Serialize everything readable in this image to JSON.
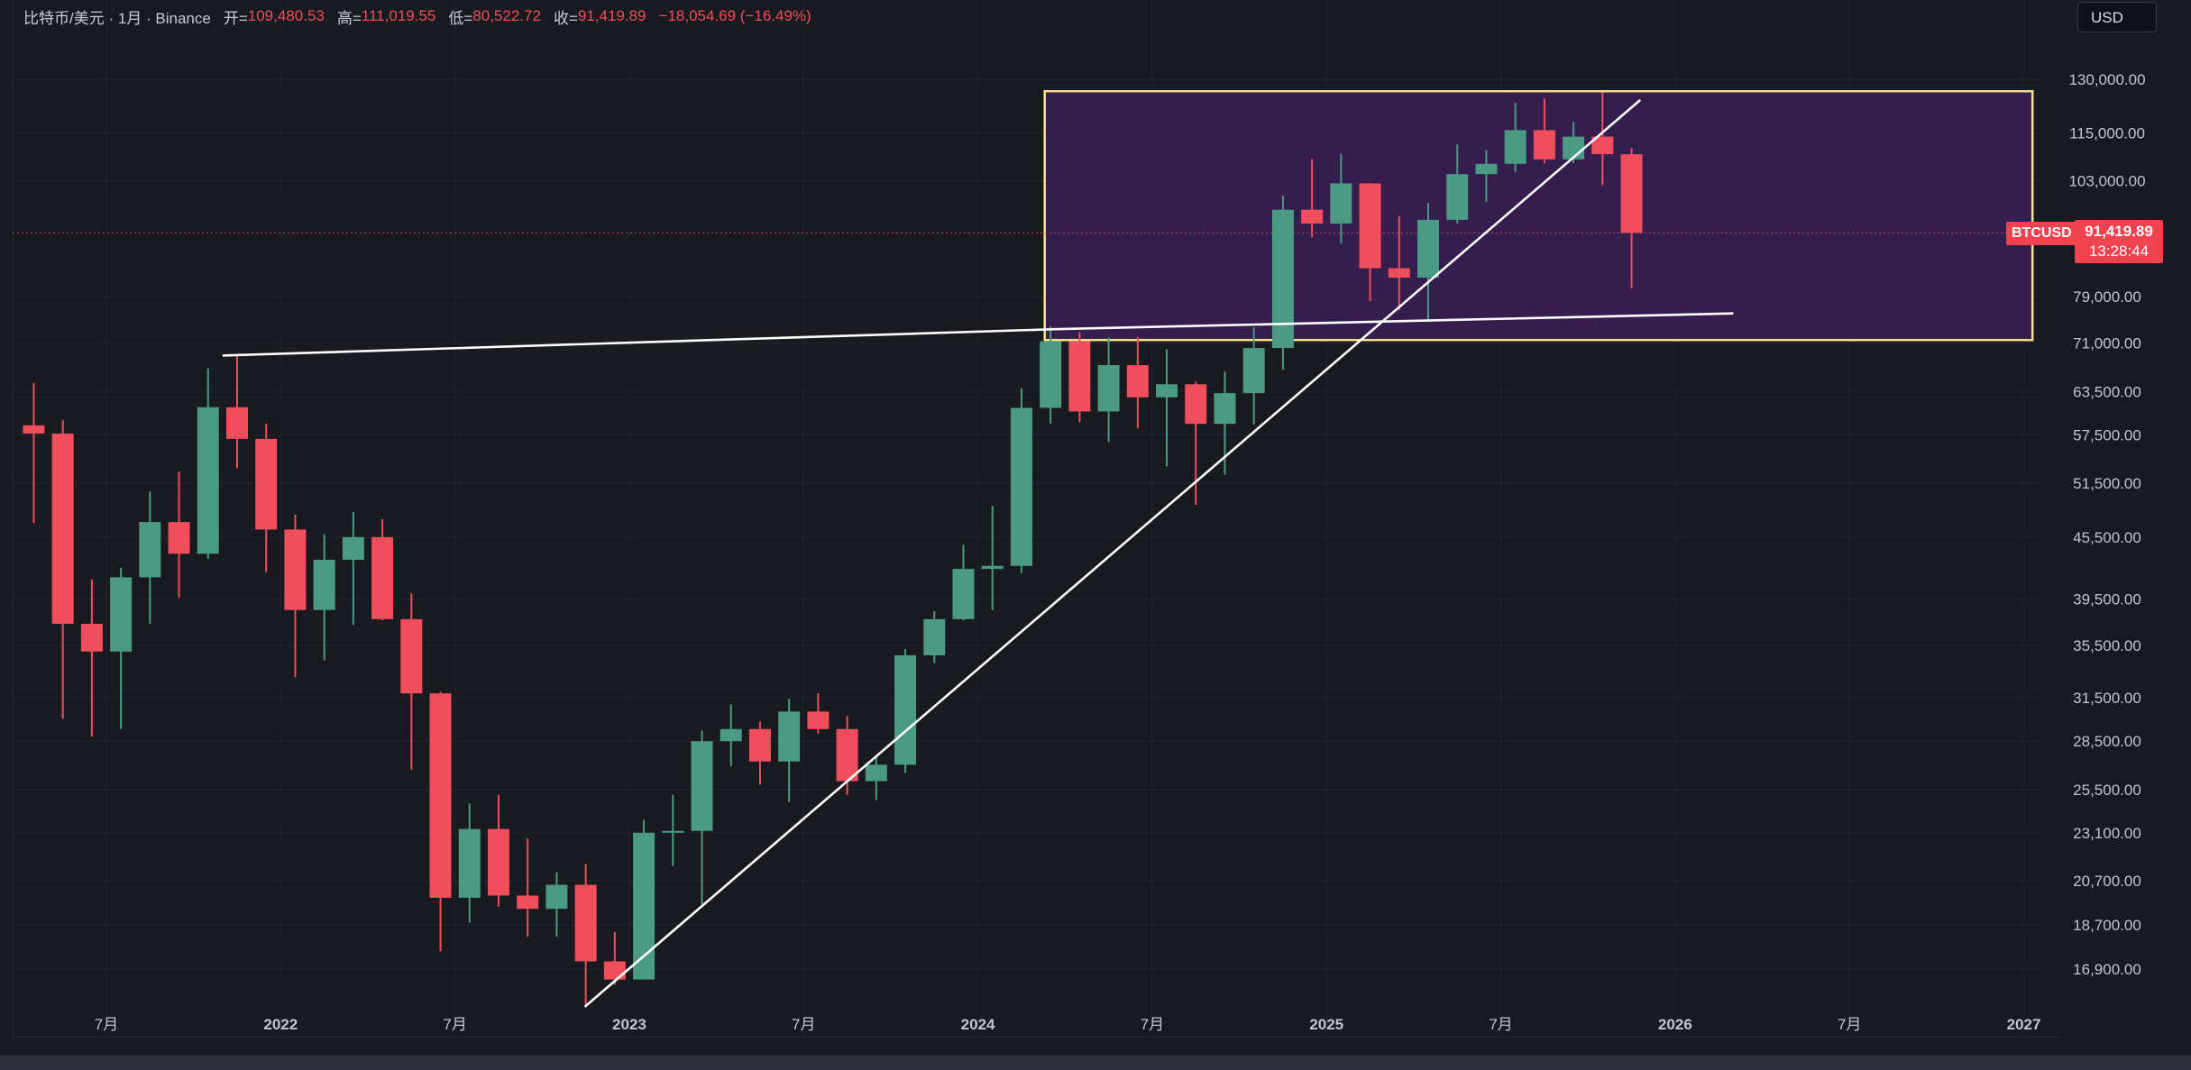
{
  "header": {
    "symbol": "比特币/美元 · 1月 · Binance",
    "open_label": "开=",
    "open": "109,480.53",
    "high_label": "高=",
    "high": "111,019.55",
    "low_label": "低=",
    "low": "80,522.72",
    "close_label": "收=",
    "close": "91,419.89",
    "change": "−18,054.69 (−16.49%)"
  },
  "currency_button": "USD",
  "price_tag": {
    "symbol": "BTCUSD",
    "price": "91,419.89",
    "countdown": "13:28:44"
  },
  "colors": {
    "background": "#181a20",
    "up": "#4a9a84",
    "down": "#ef4e5c",
    "box_border": "#f4e487",
    "box_fill": "#3b1f57",
    "lines": "#ffffff",
    "text": "#c9ccd3"
  },
  "chart_data": {
    "type": "candlestick",
    "y_scale": "log",
    "ylim": [
      15500,
      150000
    ],
    "x_range": [
      "2021-03",
      "2027-02"
    ],
    "y_ticks": [
      {
        "v": 130000,
        "label": "130,000.00"
      },
      {
        "v": 115000,
        "label": "115,000.00"
      },
      {
        "v": 103000,
        "label": "103,000.00"
      },
      {
        "v": 79000,
        "label": "79,000.00"
      },
      {
        "v": 71000,
        "label": "71,000.00"
      },
      {
        "v": 63500,
        "label": "63,500.00"
      },
      {
        "v": 57500,
        "label": "57,500.00"
      },
      {
        "v": 51500,
        "label": "51,500.00"
      },
      {
        "v": 45500,
        "label": "45,500.00"
      },
      {
        "v": 39500,
        "label": "39,500.00"
      },
      {
        "v": 35500,
        "label": "35,500.00"
      },
      {
        "v": 31500,
        "label": "31,500.00"
      },
      {
        "v": 28500,
        "label": "28,500.00"
      },
      {
        "v": 25500,
        "label": "25,500.00"
      },
      {
        "v": 23100,
        "label": "23,100.00"
      },
      {
        "v": 20700,
        "label": "20,700.00"
      },
      {
        "v": 18700,
        "label": "18,700.00"
      },
      {
        "v": 16900,
        "label": "16,900.00"
      }
    ],
    "x_ticks": [
      {
        "date": "2021-07",
        "label": "7月",
        "bold": false
      },
      {
        "date": "2022-01",
        "label": "2022",
        "bold": true
      },
      {
        "date": "2022-07",
        "label": "7月",
        "bold": false
      },
      {
        "date": "2023-01",
        "label": "2023",
        "bold": true
      },
      {
        "date": "2023-07",
        "label": "7月",
        "bold": false
      },
      {
        "date": "2024-01",
        "label": "2024",
        "bold": true
      },
      {
        "date": "2024-07",
        "label": "7月",
        "bold": false
      },
      {
        "date": "2025-01",
        "label": "2025",
        "bold": true
      },
      {
        "date": "2025-07",
        "label": "7月",
        "bold": false
      },
      {
        "date": "2026-01",
        "label": "2026",
        "bold": true
      },
      {
        "date": "2026-07",
        "label": "7月",
        "bold": false
      },
      {
        "date": "2027-01",
        "label": "2027",
        "bold": true
      }
    ],
    "candles": [
      {
        "date": "2021-04",
        "o": 58800,
        "h": 64800,
        "l": 47000,
        "c": 57700
      },
      {
        "date": "2021-05",
        "o": 57700,
        "h": 59500,
        "l": 30000,
        "c": 37300
      },
      {
        "date": "2021-06",
        "o": 37300,
        "h": 41300,
        "l": 28800,
        "c": 35000
      },
      {
        "date": "2021-07",
        "o": 35000,
        "h": 42400,
        "l": 29300,
        "c": 41500
      },
      {
        "date": "2021-08",
        "o": 41500,
        "h": 50500,
        "l": 37300,
        "c": 47100
      },
      {
        "date": "2021-09",
        "o": 47100,
        "h": 52900,
        "l": 39600,
        "c": 43800
      },
      {
        "date": "2021-10",
        "o": 43800,
        "h": 67000,
        "l": 43300,
        "c": 61300
      },
      {
        "date": "2021-11",
        "o": 61300,
        "h": 69000,
        "l": 53300,
        "c": 57000
      },
      {
        "date": "2021-12",
        "o": 57000,
        "h": 59000,
        "l": 42000,
        "c": 46300
      },
      {
        "date": "2022-01",
        "o": 46300,
        "h": 47900,
        "l": 33000,
        "c": 38500
      },
      {
        "date": "2022-02",
        "o": 38500,
        "h": 45800,
        "l": 34300,
        "c": 43200
      },
      {
        "date": "2022-03",
        "o": 43200,
        "h": 48200,
        "l": 37200,
        "c": 45500
      },
      {
        "date": "2022-04",
        "o": 45500,
        "h": 47400,
        "l": 37600,
        "c": 37700
      },
      {
        "date": "2022-05",
        "o": 37700,
        "h": 40000,
        "l": 26700,
        "c": 31800
      },
      {
        "date": "2022-06",
        "o": 31800,
        "h": 31900,
        "l": 17600,
        "c": 19900
      },
      {
        "date": "2022-07",
        "o": 19900,
        "h": 24700,
        "l": 18800,
        "c": 23300
      },
      {
        "date": "2022-08",
        "o": 23300,
        "h": 25200,
        "l": 19500,
        "c": 20000
      },
      {
        "date": "2022-09",
        "o": 20000,
        "h": 22800,
        "l": 18200,
        "c": 19400
      },
      {
        "date": "2022-10",
        "o": 19400,
        "h": 21100,
        "l": 18200,
        "c": 20500
      },
      {
        "date": "2022-11",
        "o": 20500,
        "h": 21500,
        "l": 15500,
        "c": 17200
      },
      {
        "date": "2022-12",
        "o": 17200,
        "h": 18400,
        "l": 16300,
        "c": 16500
      },
      {
        "date": "2023-01",
        "o": 16500,
        "h": 23800,
        "l": 16500,
        "c": 23100
      },
      {
        "date": "2023-02",
        "o": 23100,
        "h": 25200,
        "l": 21400,
        "c": 23200
      },
      {
        "date": "2023-03",
        "o": 23200,
        "h": 29200,
        "l": 19600,
        "c": 28500
      },
      {
        "date": "2023-04",
        "o": 28500,
        "h": 31000,
        "l": 26900,
        "c": 29300
      },
      {
        "date": "2023-05",
        "o": 29300,
        "h": 29800,
        "l": 25800,
        "c": 27200
      },
      {
        "date": "2023-06",
        "o": 27200,
        "h": 31400,
        "l": 24800,
        "c": 30500
      },
      {
        "date": "2023-07",
        "o": 30500,
        "h": 31800,
        "l": 29000,
        "c": 29300
      },
      {
        "date": "2023-08",
        "o": 29300,
        "h": 30200,
        "l": 25200,
        "c": 26000
      },
      {
        "date": "2023-09",
        "o": 26000,
        "h": 27500,
        "l": 24900,
        "c": 27000
      },
      {
        "date": "2023-10",
        "o": 27000,
        "h": 35200,
        "l": 26500,
        "c": 34700
      },
      {
        "date": "2023-11",
        "o": 34700,
        "h": 38400,
        "l": 34100,
        "c": 37700
      },
      {
        "date": "2023-12",
        "o": 37700,
        "h": 44700,
        "l": 37600,
        "c": 42300
      },
      {
        "date": "2024-01",
        "o": 42300,
        "h": 48900,
        "l": 38500,
        "c": 42600
      },
      {
        "date": "2024-02",
        "o": 42600,
        "h": 64000,
        "l": 41900,
        "c": 61200
      },
      {
        "date": "2024-03",
        "o": 61200,
        "h": 73800,
        "l": 59000,
        "c": 71300
      },
      {
        "date": "2024-04",
        "o": 71300,
        "h": 72800,
        "l": 59200,
        "c": 60700
      },
      {
        "date": "2024-05",
        "o": 60700,
        "h": 71900,
        "l": 56600,
        "c": 67500
      },
      {
        "date": "2024-06",
        "o": 67500,
        "h": 72000,
        "l": 58400,
        "c": 62700
      },
      {
        "date": "2024-07",
        "o": 62700,
        "h": 70000,
        "l": 53500,
        "c": 64600
      },
      {
        "date": "2024-08",
        "o": 64600,
        "h": 65000,
        "l": 49000,
        "c": 59000
      },
      {
        "date": "2024-09",
        "o": 59000,
        "h": 66500,
        "l": 52500,
        "c": 63300
      },
      {
        "date": "2024-10",
        "o": 63300,
        "h": 73600,
        "l": 58900,
        "c": 70200
      },
      {
        "date": "2024-11",
        "o": 70200,
        "h": 99600,
        "l": 66800,
        "c": 96400
      },
      {
        "date": "2024-12",
        "o": 96400,
        "h": 108300,
        "l": 90500,
        "c": 93400
      },
      {
        "date": "2025-01",
        "o": 93400,
        "h": 109600,
        "l": 89200,
        "c": 102400
      },
      {
        "date": "2025-02",
        "o": 102400,
        "h": 102500,
        "l": 78200,
        "c": 84300
      },
      {
        "date": "2025-03",
        "o": 84300,
        "h": 95000,
        "l": 76600,
        "c": 82500
      },
      {
        "date": "2025-04",
        "o": 82500,
        "h": 97900,
        "l": 74500,
        "c": 94200
      },
      {
        "date": "2025-05",
        "o": 94200,
        "h": 111900,
        "l": 93400,
        "c": 104600
      },
      {
        "date": "2025-06",
        "o": 104600,
        "h": 110500,
        "l": 98200,
        "c": 107100
      },
      {
        "date": "2025-07",
        "o": 107100,
        "h": 123200,
        "l": 105100,
        "c": 115700
      },
      {
        "date": "2025-08",
        "o": 115700,
        "h": 124400,
        "l": 107300,
        "c": 108200
      },
      {
        "date": "2025-09",
        "o": 108200,
        "h": 117900,
        "l": 107300,
        "c": 114000
      },
      {
        "date": "2025-10",
        "o": 114000,
        "h": 126200,
        "l": 102000,
        "c": 109500
      },
      {
        "date": "2025-11",
        "o": 109480.53,
        "h": 111019.55,
        "l": 80522.72,
        "c": 91419.89
      }
    ],
    "box": {
      "x1": "2024-03-10",
      "x2": "2027-01-10",
      "y1": 71500,
      "y2": 126500
    },
    "trendlines": [
      {
        "x1": "2021-11",
        "y1": 69000,
        "x2": "2024-03-20",
        "y2": 73300
      },
      {
        "x1": "2024-03-20",
        "y1": 73300,
        "x2": "2026-03",
        "y2": 76000
      },
      {
        "x1": "2022-11-15",
        "y1": 15500,
        "x2": "2025-11-25",
        "y2": 124000
      }
    ],
    "current_price": 91419.89
  }
}
